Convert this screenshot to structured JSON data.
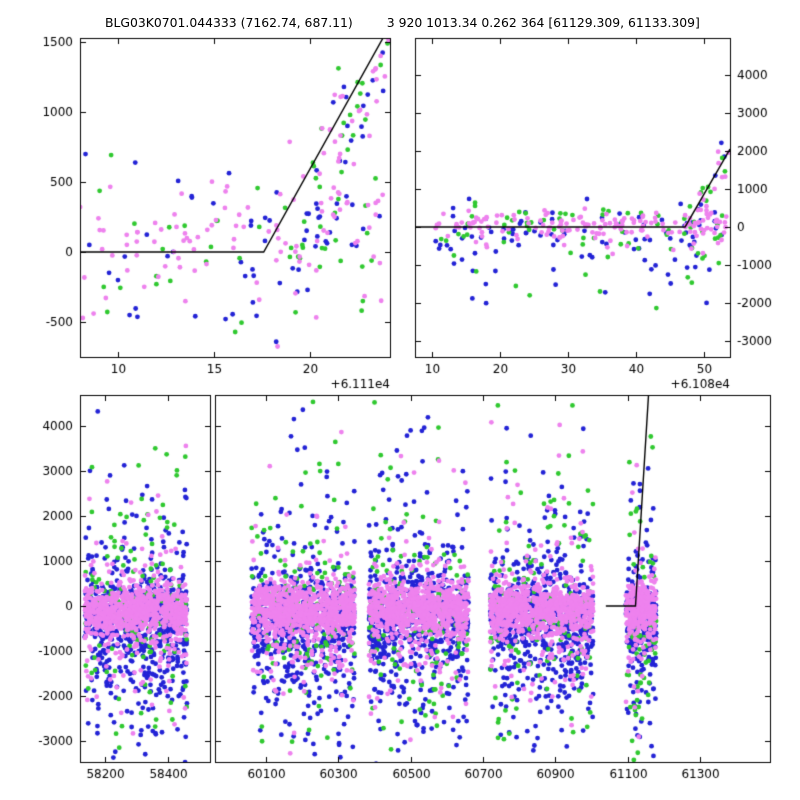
{
  "title": {
    "left": "BLG03K0701.044333 (7162.74, 687.11)",
    "right": "3 920 1013.34 0.262 364 [61129.309, 61133.309]"
  },
  "palette": {
    "violet": "#ee82ee",
    "blue": "#2323d6",
    "green": "#30c930",
    "model_line": "#000000",
    "axis": "#000000",
    "background": "#ffffff"
  },
  "chart_data": [
    {
      "id": "top-left",
      "type": "scatter",
      "seed": 7,
      "xlim": [
        8.0,
        24.2
      ],
      "ylim": [
        -750,
        1530
      ],
      "xticks": [
        10,
        15,
        20
      ],
      "yticks": [
        -500,
        0,
        500,
        1000,
        1500
      ],
      "ytick_labels_side": "left",
      "x_offset_label": "+6.111e4",
      "model_line": [
        [
          8.0,
          0
        ],
        [
          17.6,
          0
        ],
        [
          24.2,
          1620
        ]
      ],
      "series": [
        {
          "name": "blue",
          "color": "blue",
          "clusters": [
            {
              "x": [
                8.1,
                24.2
              ],
              "mu": 0,
              "sigma": 300,
              "count": 52
            },
            {
              "x": [
                19.0,
                24.2
              ],
              "along_line": true,
              "mu": -200,
              "sigma": 300,
              "count": 24
            }
          ]
        },
        {
          "name": "green",
          "color": "green",
          "clusters": [
            {
              "x": [
                8.1,
                24.2
              ],
              "mu": 60,
              "sigma": 300,
              "count": 44
            },
            {
              "x": [
                19.0,
                24.2
              ],
              "along_line": true,
              "mu": -150,
              "sigma": 280,
              "count": 20
            }
          ]
        },
        {
          "name": "violet",
          "color": "violet",
          "clusters": [
            {
              "x": [
                8.0,
                24.2
              ],
              "mu": 100,
              "sigma": 270,
              "count": 88
            },
            {
              "x": [
                18.3,
                24.2
              ],
              "along_line": true,
              "mu": -150,
              "sigma": 280,
              "count": 40
            }
          ]
        }
      ]
    },
    {
      "id": "top-right",
      "type": "scatter",
      "seed": 8,
      "xlim": [
        7.5,
        53.8
      ],
      "ylim": [
        -3420,
        4970
      ],
      "xticks": [
        10,
        20,
        30,
        40,
        50
      ],
      "yticks": [
        -3000,
        -2000,
        -1000,
        0,
        1000,
        2000,
        3000,
        4000
      ],
      "ytick_labels_side": "right",
      "x_offset_label": "+6.108e4",
      "model_line": [
        [
          7.5,
          0
        ],
        [
          47.2,
          0
        ],
        [
          53.8,
          2050
        ]
      ],
      "series": [
        {
          "name": "blue",
          "color": "blue",
          "clusters": [
            {
              "x": [
                10.5,
                53.5
              ],
              "mu": -150,
              "sigma": 420,
              "count": 78
            },
            {
              "x": [
                12,
                53
              ],
              "mu": -1200,
              "sigma": 650,
              "count": 16
            },
            {
              "x": [
                47,
                53.8
              ],
              "along_line": true,
              "mu": -100,
              "sigma": 300,
              "count": 10
            }
          ]
        },
        {
          "name": "green",
          "color": "green",
          "clusters": [
            {
              "x": [
                11,
                53.5
              ],
              "mu": -80,
              "sigma": 380,
              "count": 58
            },
            {
              "x": [
                13,
                53
              ],
              "mu": -1100,
              "sigma": 750,
              "count": 13
            },
            {
              "x": [
                47,
                53.8
              ],
              "along_line": true,
              "mu": -100,
              "sigma": 280,
              "count": 9
            }
          ]
        },
        {
          "name": "violet",
          "color": "violet",
          "clusters": [
            {
              "x": [
                10.5,
                53.5
              ],
              "mu": 40,
              "sigma": 180,
              "count": 150
            },
            {
              "x": [
                12,
                53
              ],
              "mu": -350,
              "sigma": 280,
              "count": 12
            },
            {
              "x": [
                47,
                53.8
              ],
              "along_line": true,
              "mu": -100,
              "sigma": 260,
              "count": 14
            }
          ]
        }
      ]
    },
    {
      "id": "bottom-left",
      "type": "scatter",
      "seed": 9,
      "xlim": [
        58120,
        58533
      ],
      "ylim": [
        -3470,
        4690
      ],
      "xticks": [
        58200,
        58400
      ],
      "yticks": [
        -3000,
        -2000,
        -1000,
        0,
        1000,
        2000,
        3000,
        4000
      ],
      "ytick_labels_side": "left",
      "series": [
        {
          "name": "blue",
          "color": "blue",
          "clusters": [
            {
              "x": [
                58135,
                58460
              ],
              "mu": -250,
              "sigma": 450,
              "count": 380
            },
            {
              "x": [
                58135,
                58460
              ],
              "mu": -700,
              "sigma": 1200,
              "count": 240
            },
            {
              "x": [
                58135,
                58460
              ],
              "mu": 0,
              "sigma": 2200,
              "count": 80
            }
          ]
        },
        {
          "name": "green",
          "color": "green",
          "clusters": [
            {
              "x": [
                58135,
                58460
              ],
              "mu": -300,
              "sigma": 700,
              "count": 70
            },
            {
              "x": [
                58135,
                58460
              ],
              "mu": 200,
              "sigma": 2100,
              "count": 80
            }
          ]
        },
        {
          "name": "violet",
          "color": "violet",
          "clusters": [
            {
              "x": [
                58135,
                58460
              ],
              "mu": -80,
              "sigma": 280,
              "count": 640
            },
            {
              "x": [
                58135,
                58460
              ],
              "mu": -300,
              "sigma": 800,
              "count": 180
            },
            {
              "x": [
                58135,
                58460
              ],
              "mu": 200,
              "sigma": 1600,
              "count": 40
            }
          ]
        }
      ]
    },
    {
      "id": "bottom-right",
      "type": "scatter",
      "seed": 10,
      "xlim": [
        59959,
        61494
      ],
      "ylim": [
        -3470,
        4690
      ],
      "xticks": [
        60100,
        60300,
        60500,
        60700,
        60900,
        61100,
        61300
      ],
      "yticks": [
        -3000,
        -2000,
        -1000,
        0,
        1000,
        2000,
        3000,
        4000
      ],
      "ytick_labels_side": "none",
      "model_line": [
        [
          61040,
          0
        ],
        [
          61122,
          0
        ],
        [
          61158,
          4690
        ]
      ],
      "series": [
        {
          "name": "blue",
          "color": "blue",
          "clusters": [
            {
              "x": [
                60060,
                60345
              ],
              "mu": -250,
              "sigma": 450,
              "count": 380
            },
            {
              "x": [
                60060,
                60345
              ],
              "mu": -700,
              "sigma": 1200,
              "count": 240
            },
            {
              "x": [
                60060,
                60345
              ],
              "mu": 0,
              "sigma": 2200,
              "count": 80
            },
            {
              "x": [
                60385,
                60660
              ],
              "mu": -250,
              "sigma": 450,
              "count": 380
            },
            {
              "x": [
                60385,
                60660
              ],
              "mu": -700,
              "sigma": 1200,
              "count": 240
            },
            {
              "x": [
                60385,
                60660
              ],
              "mu": 0,
              "sigma": 2200,
              "count": 80
            },
            {
              "x": [
                60720,
                61005
              ],
              "mu": -250,
              "sigma": 450,
              "count": 380
            },
            {
              "x": [
                60720,
                61005
              ],
              "mu": -700,
              "sigma": 1200,
              "count": 240
            },
            {
              "x": [
                60720,
                61005
              ],
              "mu": 0,
              "sigma": 2200,
              "count": 80
            },
            {
              "x": [
                61095,
                61180
              ],
              "mu": -250,
              "sigma": 450,
              "count": 130
            },
            {
              "x": [
                61095,
                61180
              ],
              "mu": -700,
              "sigma": 1200,
              "count": 85
            },
            {
              "x": [
                61095,
                61180
              ],
              "mu": 0,
              "sigma": 2200,
              "count": 30
            }
          ]
        },
        {
          "name": "green",
          "color": "green",
          "clusters": [
            {
              "x": [
                60060,
                60345
              ],
              "mu": -300,
              "sigma": 700,
              "count": 70
            },
            {
              "x": [
                60060,
                60345
              ],
              "mu": 200,
              "sigma": 2100,
              "count": 80
            },
            {
              "x": [
                60385,
                60660
              ],
              "mu": -300,
              "sigma": 700,
              "count": 70
            },
            {
              "x": [
                60385,
                60660
              ],
              "mu": 200,
              "sigma": 2100,
              "count": 80
            },
            {
              "x": [
                60720,
                61005
              ],
              "mu": -300,
              "sigma": 700,
              "count": 70
            },
            {
              "x": [
                60720,
                61005
              ],
              "mu": 200,
              "sigma": 2100,
              "count": 80
            },
            {
              "x": [
                61095,
                61180
              ],
              "mu": -300,
              "sigma": 700,
              "count": 25
            },
            {
              "x": [
                61095,
                61180
              ],
              "mu": 200,
              "sigma": 2100,
              "count": 30
            },
            {
              "x": [
                61100,
                61170
              ],
              "mu": -1500,
              "sigma": 900,
              "count": 20
            }
          ]
        },
        {
          "name": "violet",
          "color": "violet",
          "clusters": [
            {
              "x": [
                60060,
                60345
              ],
              "mu": -80,
              "sigma": 280,
              "count": 640
            },
            {
              "x": [
                60060,
                60345
              ],
              "mu": -300,
              "sigma": 800,
              "count": 180
            },
            {
              "x": [
                60060,
                60345
              ],
              "mu": 200,
              "sigma": 1600,
              "count": 40
            },
            {
              "x": [
                60385,
                60660
              ],
              "mu": -80,
              "sigma": 280,
              "count": 640
            },
            {
              "x": [
                60385,
                60660
              ],
              "mu": -300,
              "sigma": 800,
              "count": 180
            },
            {
              "x": [
                60385,
                60660
              ],
              "mu": 200,
              "sigma": 1600,
              "count": 40
            },
            {
              "x": [
                60720,
                61005
              ],
              "mu": -80,
              "sigma": 280,
              "count": 640
            },
            {
              "x": [
                60720,
                61005
              ],
              "mu": -300,
              "sigma": 800,
              "count": 180
            },
            {
              "x": [
                60720,
                61005
              ],
              "mu": 200,
              "sigma": 1600,
              "count": 40
            },
            {
              "x": [
                61095,
                61180
              ],
              "mu": -80,
              "sigma": 280,
              "count": 230
            },
            {
              "x": [
                61095,
                61180
              ],
              "mu": -300,
              "sigma": 800,
              "count": 65
            },
            {
              "x": [
                61095,
                61180
              ],
              "mu": 200,
              "sigma": 1600,
              "count": 15
            }
          ]
        }
      ]
    }
  ]
}
